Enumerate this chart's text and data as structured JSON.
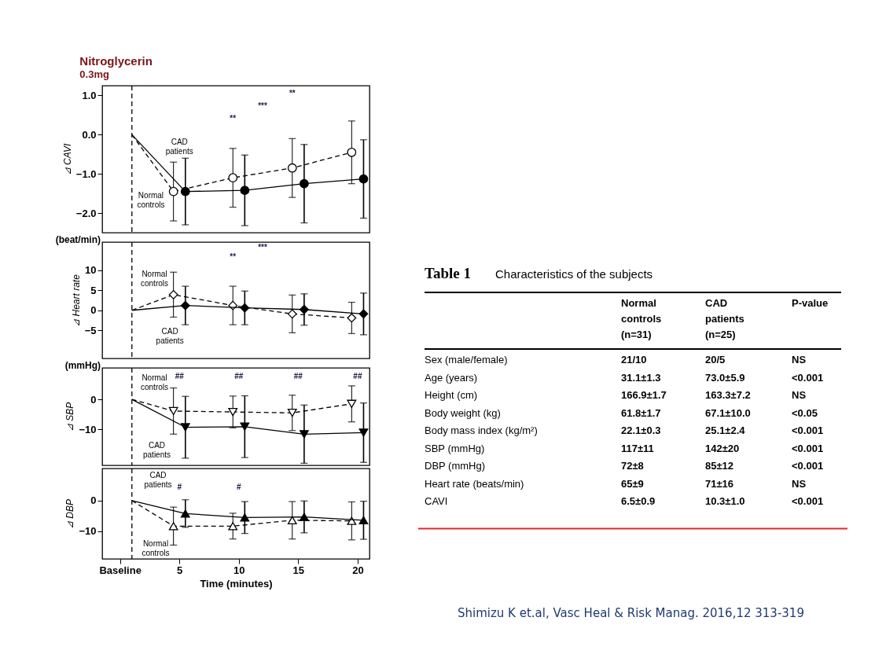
{
  "chart_data": [
    {
      "type": "line",
      "title": "Nitroglycerin",
      "subtitle": "0.3mg",
      "ylabel": "⊿ CAVI",
      "xlim": [
        -1.5,
        21
      ],
      "ylim": [
        -2.5,
        1.25
      ],
      "yticks": [
        {
          "value": 1,
          "label": "1.0"
        },
        {
          "value": 0,
          "label": "0.0"
        },
        {
          "value": -1,
          "label": "−1.0"
        },
        {
          "value": -2,
          "label": "−2.0"
        }
      ],
      "tick_labels": "y",
      "marker": "circle",
      "series": [
        {
          "name": "Normal controls",
          "color": "#000000",
          "line_style": "dashed",
          "x": [
            1,
            4.5,
            9.5,
            14.5,
            19.5
          ],
          "values": [
            0,
            -1.45,
            -1.1,
            -0.85,
            -0.45
          ],
          "errors": [
            null,
            0.75,
            0.75,
            0.75,
            0.8
          ]
        },
        {
          "name": "CAD patients",
          "color": "#000000",
          "line_style": "solid",
          "x": [
            1,
            5.5,
            10.5,
            15.5,
            20.5
          ],
          "values": [
            0,
            -1.45,
            -1.42,
            -1.25,
            -1.13
          ],
          "errors": [
            null,
            0.85,
            0.9,
            1.0,
            1.0
          ]
        }
      ],
      "ref_lines": [
        {
          "axis": "x",
          "value": 1,
          "line_style": "dashed"
        }
      ],
      "annotations": [
        "**",
        "***",
        "**"
      ]
    },
    {
      "type": "line",
      "title": "(beat/min)",
      "ylabel": "⊿ Heart rate",
      "xlim": [
        -1.5,
        21
      ],
      "ylim": [
        -12,
        17
      ],
      "yticks": [
        10,
        5,
        0,
        {
          "value": -5,
          "label": "−5"
        }
      ],
      "tick_labels": "y",
      "marker": "diamond",
      "series": [
        {
          "name": "Normal controls",
          "color": "#000000",
          "line_style": "dashed",
          "x": [
            1,
            4.5,
            9.5,
            14.5,
            19.5
          ],
          "values": [
            0,
            3.9,
            1.2,
            -0.9,
            -1.9
          ],
          "errors": [
            null,
            5.6,
            4.8,
            4.7,
            3.9
          ]
        },
        {
          "name": "CAD patients",
          "color": "#000000",
          "line_style": "solid",
          "x": [
            1,
            5.5,
            10.5,
            15.5,
            20.5
          ],
          "values": [
            0,
            1.2,
            0.6,
            0.2,
            -0.9
          ],
          "errors": [
            null,
            4.8,
            4.2,
            3.9,
            5.2
          ]
        }
      ],
      "ref_lines": [
        {
          "axis": "x",
          "value": 1,
          "line_style": "dashed"
        }
      ],
      "annotations": [
        "***",
        "**"
      ]
    },
    {
      "type": "line",
      "title": "(mmHg)",
      "ylabel": "⊿ SBP",
      "xlim": [
        -1.5,
        21
      ],
      "ylim": [
        -22,
        10.5
      ],
      "yticks": [
        0,
        {
          "value": -10,
          "label": "−10"
        }
      ],
      "tick_labels": "y",
      "marker": "triangle-down",
      "series": [
        {
          "name": "Normal controls",
          "color": "#000000",
          "line_style": "dashed",
          "x": [
            1,
            4.5,
            9.5,
            14.5,
            19.5
          ],
          "values": [
            0,
            -3.9,
            -4.2,
            -4.5,
            -1.5
          ],
          "errors": [
            null,
            7.7,
            5.3,
            5.9,
            6
          ]
        },
        {
          "name": "CAD patients",
          "color": "#000000",
          "line_style": "solid",
          "x": [
            1,
            5.5,
            10.5,
            15.5,
            20.5
          ],
          "values": [
            0,
            -9.3,
            -9.1,
            -11.6,
            -11.1
          ],
          "errors": [
            null,
            10.3,
            10.3,
            9.7,
            9.9
          ]
        }
      ],
      "ref_lines": [
        {
          "axis": "x",
          "value": 1,
          "line_style": "dashed"
        }
      ],
      "annotations": [
        "##",
        "##",
        "##",
        "##"
      ]
    },
    {
      "type": "line",
      "ylabel": "⊿ DBP",
      "xlabel": "Time (minutes)",
      "xlim": [
        -1.5,
        21
      ],
      "ylim": [
        -19,
        10.5
      ],
      "xticks": [
        {
          "value": 0,
          "label": "Baseline"
        },
        5,
        10,
        15,
        20
      ],
      "yticks": [
        0,
        {
          "value": -10,
          "label": "−10"
        }
      ],
      "marker": "triangle-up",
      "series": [
        {
          "name": "Normal controls",
          "color": "#000000",
          "line_style": "dashed",
          "x": [
            1,
            4.5,
            9.5,
            14.5,
            19.5
          ],
          "values": [
            0,
            -8.3,
            -8.3,
            -6.4,
            -6.6
          ],
          "errors": [
            null,
            6.2,
            4.2,
            6.1,
            6.2
          ]
        },
        {
          "name": "CAD patients",
          "color": "#000000",
          "line_style": "solid",
          "x": [
            1,
            5.5,
            10.5,
            15.5,
            20.5
          ],
          "values": [
            0,
            -4.2,
            -5.5,
            -5.3,
            -6.4
          ],
          "errors": [
            null,
            4.5,
            5.2,
            5.2,
            6.2
          ]
        }
      ],
      "ref_lines": [
        {
          "axis": "x",
          "value": 1,
          "line_style": "dashed"
        }
      ],
      "annotations": [
        "#",
        "#"
      ]
    },
    {
      "type": "other",
      "title": "Table 1",
      "subtitle": "Characteristics of the subjects",
      "categories": [
        "Normal controls (n=31)",
        "CAD patients (n=25)",
        "P-value"
      ],
      "y_categories": [
        "Sex (male/female)",
        "Age (years)",
        "Height (cm)",
        "Body weight (kg)",
        "Body mass index (kg/m²)",
        "SBP (mmHg)",
        "DBP (mmHg)",
        "Heart rate (beats/min)",
        "CAVI"
      ],
      "cell_labels": [
        [
          "21/10",
          "20/5",
          "NS"
        ],
        [
          "31.1±1.3",
          "73.0±5.9",
          "<0.001"
        ],
        [
          "166.9±1.7",
          "163.3±7.2",
          "NS"
        ],
        [
          "61.8±1.7",
          "67.1±10.0",
          "<0.05"
        ],
        [
          "22.1±0.3",
          "25.1±2.4",
          "<0.001"
        ],
        [
          "117±11",
          "142±20",
          "<0.001"
        ],
        [
          "72±8",
          "85±12",
          "<0.001"
        ],
        [
          "65±9",
          "71±16",
          "NS"
        ],
        [
          "6.5±0.9",
          "10.3±1.0",
          "<0.001"
        ]
      ],
      "annotations": [
        "Shimizu K et.al, Vasc Heal & Risk Manag. 2016,12 313-319"
      ]
    }
  ]
}
